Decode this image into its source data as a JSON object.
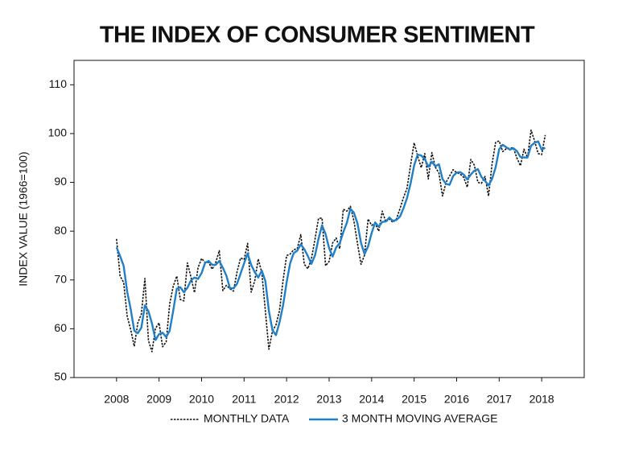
{
  "chart_data": {
    "type": "line",
    "title": "THE INDEX OF CONSUMER SENTIMENT",
    "y_label": "INDEX VALUE (1966=100)",
    "xlim": [
      2007,
      2019
    ],
    "xticks": [
      2008,
      2009,
      2010,
      2011,
      2012,
      2013,
      2014,
      2015,
      2016,
      2017,
      2018
    ],
    "ylim": [
      50,
      115
    ],
    "yticks": [
      50,
      60,
      70,
      80,
      90,
      100,
      110
    ],
    "grid": false,
    "legend": "bottom",
    "x": [
      2008,
      2008.083,
      2008.167,
      2008.25,
      2008.333,
      2008.417,
      2008.5,
      2008.583,
      2008.667,
      2008.75,
      2008.833,
      2008.917,
      2009,
      2009.083,
      2009.167,
      2009.25,
      2009.333,
      2009.417,
      2009.5,
      2009.583,
      2009.667,
      2009.75,
      2009.833,
      2009.917,
      2010,
      2010.083,
      2010.167,
      2010.25,
      2010.333,
      2010.417,
      2010.5,
      2010.583,
      2010.667,
      2010.75,
      2010.833,
      2010.917,
      2011,
      2011.083,
      2011.167,
      2011.25,
      2011.333,
      2011.417,
      2011.5,
      2011.583,
      2011.667,
      2011.75,
      2011.833,
      2011.917,
      2012,
      2012.083,
      2012.167,
      2012.25,
      2012.333,
      2012.417,
      2012.5,
      2012.583,
      2012.667,
      2012.75,
      2012.833,
      2012.917,
      2013,
      2013.083,
      2013.167,
      2013.25,
      2013.333,
      2013.417,
      2013.5,
      2013.583,
      2013.667,
      2013.75,
      2013.833,
      2013.917,
      2014,
      2014.083,
      2014.167,
      2014.25,
      2014.333,
      2014.417,
      2014.5,
      2014.583,
      2014.667,
      2014.75,
      2014.833,
      2014.917,
      2015,
      2015.083,
      2015.167,
      2015.25,
      2015.333,
      2015.417,
      2015.5,
      2015.583,
      2015.667,
      2015.75,
      2015.833,
      2015.917,
      2016,
      2016.083,
      2016.167,
      2016.25,
      2016.333,
      2016.417,
      2016.5,
      2016.583,
      2016.667,
      2016.75,
      2016.833,
      2016.917,
      2017,
      2017.083,
      2017.167,
      2017.25,
      2017.333,
      2017.417,
      2017.5,
      2017.583,
      2017.667,
      2017.75,
      2017.833,
      2017.917,
      2018,
      2018.083
    ],
    "series": [
      {
        "name": "MONTHLY DATA",
        "color": "#111111",
        "dashed": true,
        "values": [
          78.4,
          70.8,
          69.5,
          62.6,
          59.8,
          56.4,
          61.2,
          63.0,
          70.3,
          57.6,
          55.3,
          60.1,
          61.2,
          56.3,
          57.3,
          65.1,
          68.7,
          70.8,
          66.0,
          65.7,
          73.5,
          70.6,
          67.4,
          72.5,
          74.4,
          73.6,
          73.6,
          72.2,
          73.6,
          76.0,
          67.8,
          68.9,
          68.2,
          67.7,
          71.6,
          74.5,
          74.2,
          77.5,
          67.5,
          69.8,
          74.3,
          71.5,
          63.7,
          55.8,
          59.5,
          60.8,
          63.7,
          69.9,
          75.0,
          75.3,
          76.2,
          76.4,
          79.3,
          73.2,
          72.3,
          74.3,
          78.3,
          82.6,
          82.7,
          72.9,
          73.8,
          77.6,
          78.6,
          76.4,
          84.5,
          84.1,
          85.1,
          82.1,
          77.5,
          73.2,
          75.1,
          82.5,
          81.2,
          81.6,
          80.0,
          84.1,
          81.9,
          82.5,
          81.8,
          82.5,
          84.6,
          86.9,
          88.8,
          93.6,
          98.1,
          95.4,
          93.0,
          95.9,
          90.7,
          96.1,
          93.1,
          91.9,
          87.2,
          90.0,
          91.3,
          92.6,
          92.0,
          91.7,
          91.0,
          89.0,
          94.7,
          93.5,
          90.0,
          89.8,
          91.2,
          87.2,
          93.8,
          98.2,
          98.5,
          96.3,
          96.9,
          97.0,
          97.1,
          95.0,
          93.4,
          96.8,
          95.1,
          100.7,
          98.5,
          95.9,
          95.7,
          99.7
        ]
      },
      {
        "name": "3 MONTH MOVING AVERAGE",
        "color": "#1f7fc9",
        "dashed": false,
        "values": [
          76.7,
          74.9,
          72.9,
          67.6,
          64.0,
          59.6,
          59.1,
          60.2,
          64.8,
          63.6,
          61.1,
          57.7,
          58.9,
          59.2,
          58.3,
          59.6,
          63.7,
          68.2,
          68.5,
          67.5,
          68.4,
          69.9,
          70.5,
          70.2,
          71.4,
          73.5,
          73.9,
          73.1,
          73.1,
          73.9,
          72.5,
          70.9,
          68.3,
          68.3,
          69.2,
          71.3,
          73.4,
          75.4,
          73.1,
          71.6,
          70.5,
          71.9,
          69.8,
          63.7,
          59.7,
          58.7,
          61.3,
          64.8,
          69.5,
          73.4,
          75.5,
          76.0,
          77.3,
          76.3,
          74.9,
          73.3,
          75.0,
          78.4,
          81.2,
          79.4,
          76.5,
          74.8,
          76.7,
          77.5,
          79.8,
          81.7,
          84.6,
          83.8,
          81.6,
          77.6,
          75.3,
          76.9,
          79.6,
          81.8,
          80.9,
          81.9,
          82.0,
          82.8,
          82.1,
          82.3,
          83.0,
          84.7,
          86.8,
          89.8,
          93.5,
          95.7,
          95.5,
          94.8,
          93.2,
          94.2,
          93.3,
          93.7,
          90.7,
          89.7,
          89.5,
          91.3,
          92.0,
          92.1,
          91.6,
          90.6,
          91.6,
          92.4,
          92.7,
          91.1,
          90.3,
          89.4,
          90.7,
          93.1,
          96.8,
          97.7,
          97.2,
          96.7,
          97.0,
          96.4,
          95.2,
          95.1,
          95.1,
          97.5,
          98.1,
          98.4,
          96.7,
          97.1
        ]
      }
    ]
  }
}
